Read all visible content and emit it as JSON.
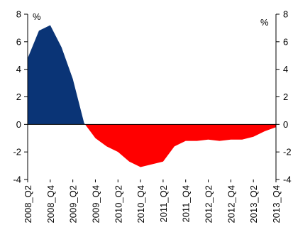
{
  "chart_data": {
    "type": "area",
    "title": "",
    "ylim": [
      -4,
      8
    ],
    "y_ticks": [
      -4,
      -2,
      0,
      2,
      4,
      6,
      8
    ],
    "y_unit_left": "%",
    "y_unit_right": "%",
    "grid": false,
    "x_tick_labels": [
      "2008_Q2",
      "2008_Q4",
      "2009_Q2",
      "2009_Q4",
      "2010_Q2",
      "2010_Q4",
      "2011_Q2",
      "2011_Q4",
      "2012_Q2",
      "2012_Q4",
      "2013_Q2",
      "2013_Q4"
    ],
    "x": [
      "2008_Q2",
      "2008_Q3",
      "2008_Q4",
      "2009_Q1",
      "2009_Q2",
      "2009_Q3",
      "2009_Q4",
      "2010_Q1",
      "2010_Q2",
      "2010_Q3",
      "2010_Q4",
      "2011_Q1",
      "2011_Q2",
      "2011_Q3",
      "2011_Q4",
      "2012_Q1",
      "2012_Q2",
      "2012_Q3",
      "2012_Q4",
      "2013_Q1",
      "2013_Q2",
      "2013_Q3",
      "2013_Q4"
    ],
    "values": [
      4.8,
      6.8,
      7.2,
      5.6,
      3.3,
      0.1,
      -1.0,
      -1.6,
      -2.0,
      -2.7,
      -3.1,
      -2.9,
      -2.7,
      -1.6,
      -1.2,
      -1.2,
      -1.1,
      -1.2,
      -1.1,
      -1.1,
      -0.9,
      -0.5,
      -0.2
    ],
    "positive_color": "#0a3476",
    "negative_color": "#ff0000"
  }
}
